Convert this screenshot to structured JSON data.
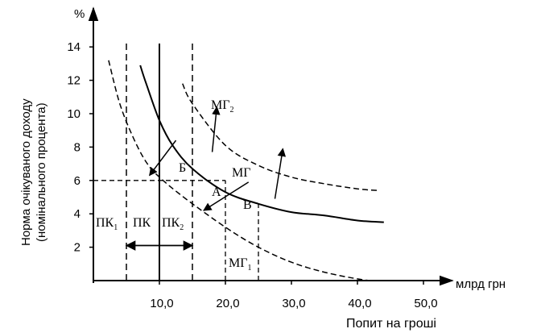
{
  "chart_data": {
    "type": "line",
    "x_unit": "млрд грн",
    "y_unit": "%",
    "xlabel": "Попит на гроші",
    "ylabel_line1": "Норма очікуваного доходу",
    "ylabel_line2": "(номінального процента)",
    "xlim": [
      0,
      52
    ],
    "ylim": [
      0,
      16
    ],
    "xticks": [
      10,
      20,
      30,
      40,
      50
    ],
    "xtick_labels": [
      "10,0",
      "20,0",
      "30,0",
      "40,0",
      "50,0"
    ],
    "yticks": [
      2,
      4,
      6,
      8,
      10,
      12,
      14
    ],
    "ytick_labels": [
      "2",
      "4",
      "6",
      "8",
      "10",
      "12",
      "14"
    ],
    "series": [
      {
        "name": "МГ",
        "label_main": "МГ",
        "label_sub": "",
        "style": "solid",
        "x": [
          7.1,
          8,
          10,
          12,
          15,
          20,
          25,
          30,
          35,
          40,
          44
        ],
        "y": [
          12.9,
          11.8,
          9.6,
          8.1,
          6.7,
          5.3,
          4.6,
          4.1,
          3.9,
          3.6,
          3.5
        ]
      },
      {
        "name": "МГ₂",
        "label_main": "МГ",
        "label_sub": "2",
        "style": "dashed",
        "x": [
          13.5,
          15,
          20,
          25,
          30,
          35,
          40,
          43
        ],
        "y": [
          11.8,
          10.6,
          8.1,
          6.9,
          6.2,
          5.8,
          5.5,
          5.4
        ]
      },
      {
        "name": "МГ₁",
        "label_main": "МГ",
        "label_sub": "1",
        "style": "dashed",
        "x": [
          2.3,
          4,
          6,
          8,
          10,
          14,
          20,
          25,
          30,
          35,
          40,
          42
        ],
        "y": [
          13.2,
          10.6,
          8.6,
          7.1,
          6.2,
          4.9,
          3.2,
          2.0,
          1.1,
          0.5,
          0.1,
          0
        ]
      }
    ],
    "vertical_lines": [
      {
        "name": "ПК₁",
        "label_main": "ПК",
        "label_sub": "1",
        "x": 5,
        "style": "dashed"
      },
      {
        "name": "ПК",
        "label_main": "ПК",
        "label_sub": "",
        "x": 10,
        "style": "solid"
      },
      {
        "name": "ПК₂",
        "label_main": "ПК",
        "label_sub": "2",
        "x": 15,
        "style": "dashed"
      }
    ],
    "guide_lines": [
      {
        "from": [
          0,
          6
        ],
        "to": [
          20,
          6
        ]
      },
      {
        "from": [
          20,
          0
        ],
        "to": [
          20,
          6
        ]
      },
      {
        "from": [
          25,
          0
        ],
        "to": [
          25,
          4.6
        ]
      }
    ],
    "points": [
      {
        "label": "А",
        "x": 20,
        "y": 6
      },
      {
        "label": "Б",
        "x": 13,
        "y": 6
      },
      {
        "label": "В",
        "x": 25,
        "y": 4.6
      }
    ],
    "shift_arrows": [
      {
        "from": [
          12.5,
          8.4
        ],
        "to": [
          8.5,
          6.3
        ]
      },
      {
        "from": [
          23.5,
          5.9
        ],
        "to": [
          16.7,
          4.2
        ]
      },
      {
        "from": [
          18,
          7.7
        ],
        "to": [
          18.7,
          10.4
        ]
      },
      {
        "from": [
          27.5,
          4.9
        ],
        "to": [
          28.7,
          7.9
        ]
      }
    ],
    "pk_shift_arrow": {
      "from": 5,
      "to": 15,
      "y": 2.1
    }
  }
}
